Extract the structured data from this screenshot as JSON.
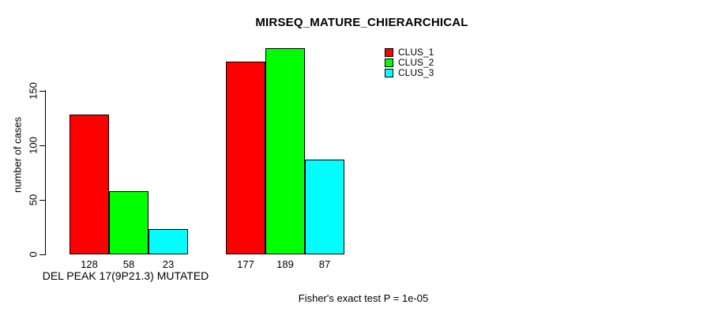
{
  "chart_data": {
    "type": "bar",
    "title": "MIRSEQ_MATURE_CHIERARCHICAL",
    "ylabel": "number of cases",
    "xlabel": "",
    "categories": [
      "DEL PEAK 17(9P21.3) MUTATED",
      ""
    ],
    "series": [
      {
        "name": "CLUS_1",
        "color": "#ff0000",
        "values": [
          128,
          177
        ]
      },
      {
        "name": "CLUS_2",
        "color": "#00ff00",
        "values": [
          58,
          189
        ]
      },
      {
        "name": "CLUS_3",
        "color": "#00ffff",
        "values": [
          23,
          87
        ]
      }
    ],
    "yticks": [
      0,
      50,
      100,
      150
    ],
    "ylim": [
      0,
      195
    ],
    "grid": false,
    "legend_position": "top-right",
    "bar_value_labels": true,
    "annotation": "Fisher's exact test P = 1e-05",
    "background_color": "#ffffff",
    "bar_border_color": "#000000"
  }
}
